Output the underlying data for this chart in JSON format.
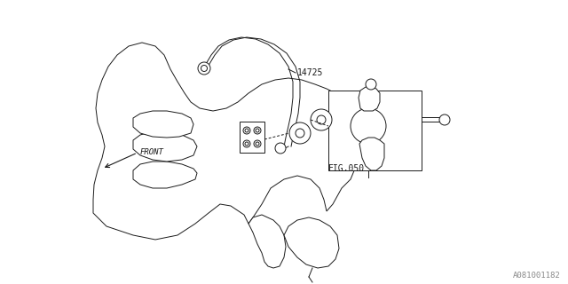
{
  "bg_color": "#ffffff",
  "line_color": "#1a1a1a",
  "light_line_color": "#555555",
  "fig_width": 6.4,
  "fig_height": 3.2,
  "dpi": 100,
  "part_number_label": "A081001182",
  "part_number_fontsize": 6.5,
  "fig050_label": "FIG.050",
  "fig050_fontsize": 7,
  "label_14725": "14725",
  "label_14725_fontsize": 7,
  "front_label": "FRONT",
  "front_fontsize": 6.5
}
